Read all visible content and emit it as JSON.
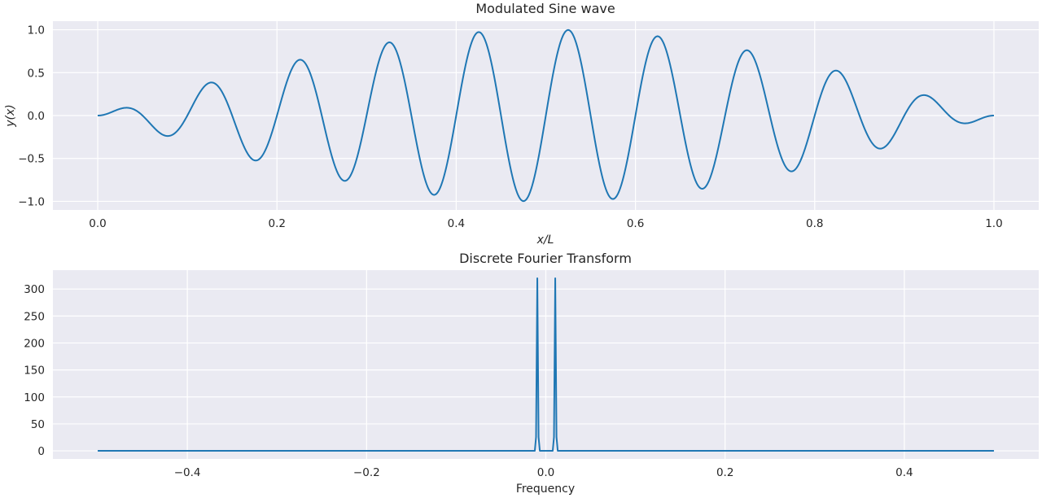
{
  "chart_data": [
    {
      "type": "line",
      "title": "Modulated Sine wave",
      "xlabel": "x/L",
      "ylabel": "y(x)",
      "xlim": [
        -0.05,
        1.05
      ],
      "ylim": [
        -1.1,
        1.1
      ],
      "xticks": [
        0.0,
        0.2,
        0.4,
        0.6,
        0.8,
        1.0
      ],
      "xtick_labels": [
        "0.0",
        "0.2",
        "0.4",
        "0.6",
        "0.8",
        "1.0"
      ],
      "yticks": [
        1.0,
        0.5,
        0.0,
        -0.5,
        -1.0
      ],
      "ytick_labels": [
        "1.0",
        "0.5",
        "0.0",
        "−0.5",
        "−1.0"
      ],
      "grid": true,
      "series": [
        {
          "function": "sin(pi*x) * sin(20*pi*x)",
          "x_range": [
            0,
            1
          ],
          "color": "#1f77b4"
        }
      ]
    },
    {
      "type": "line",
      "title": "Discrete Fourier Transform",
      "xlabel": "Frequency",
      "ylabel": "",
      "xlim": [
        -0.55,
        0.55
      ],
      "ylim": [
        -15,
        335
      ],
      "xticks": [
        -0.4,
        -0.2,
        0.0,
        0.2,
        0.4
      ],
      "xtick_labels": [
        "−0.4",
        "−0.2",
        "0.0",
        "0.2",
        "0.4"
      ],
      "yticks": [
        0,
        50,
        100,
        150,
        200,
        250,
        300
      ],
      "ytick_labels": [
        "0",
        "50",
        "100",
        "150",
        "200",
        "250",
        "300"
      ],
      "grid": true,
      "series": [
        {
          "description": "magnitude spectrum with two narrow peaks",
          "x_range": [
            -0.5,
            0.5
          ],
          "peaks": [
            {
              "x": -0.0095,
              "y": 320
            },
            {
              "x": 0.0105,
              "y": 320
            }
          ],
          "baseline": 0,
          "color": "#1f77b4"
        }
      ]
    }
  ]
}
